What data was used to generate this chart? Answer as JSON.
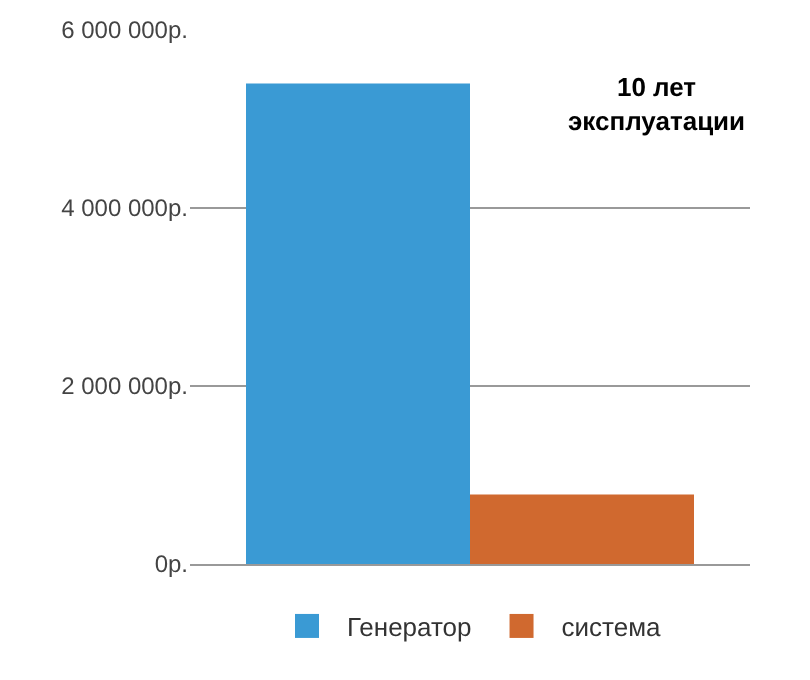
{
  "chart_data": {
    "type": "bar",
    "categories": [
      null
    ],
    "series": [
      {
        "name": "Генератор",
        "color": "#3a9ad4",
        "values": [
          5400000
        ]
      },
      {
        "name": "система",
        "color": "#d0692f",
        "values": [
          780000
        ]
      }
    ],
    "ylim": [
      0,
      6000000
    ],
    "yticks": [
      {
        "value": 0,
        "label": "0р."
      },
      {
        "value": 2000000,
        "label": "2 000 000р."
      },
      {
        "value": 4000000,
        "label": "4 000 000р."
      },
      {
        "value": 6000000,
        "label": "6 000 000р."
      }
    ],
    "grid": "y",
    "legend": "bottom",
    "annotations": [
      "10 лет\nэксплуатации"
    ]
  }
}
